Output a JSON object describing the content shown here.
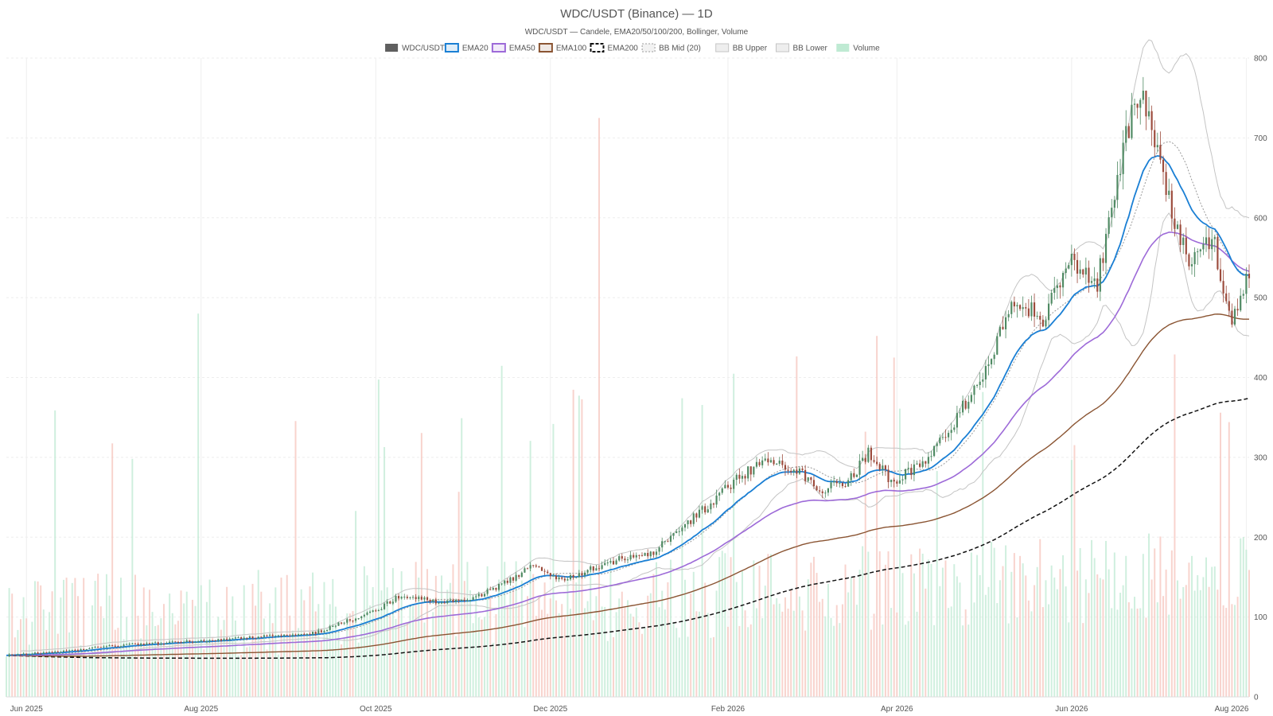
{
  "chart_data": {
    "type": "candlestick",
    "title": "WDC/USDT (Binance) — 1D",
    "subtitle": "WDC/USDT — Candele, EMA20/50/100/200, Bollinger, Volume",
    "legend_placement": "top-center",
    "grid": true,
    "legend": [
      {
        "label": "WDC/USDT",
        "style": "candle",
        "color": "#5f5f5f"
      },
      {
        "label": "EMA20",
        "style": "line",
        "color": "#1a7fd4"
      },
      {
        "label": "EMA50",
        "style": "line",
        "color": "#9d6ad8"
      },
      {
        "label": "EMA100",
        "style": "line",
        "color": "#8a5432"
      },
      {
        "label": "EMA200",
        "style": "dashed",
        "color": "#111111"
      },
      {
        "label": "BB Mid (20)",
        "style": "dotted",
        "color": "#999999"
      },
      {
        "label": "BB Upper",
        "style": "line",
        "color": "#c4c4c4"
      },
      {
        "label": "BB Lower",
        "style": "line",
        "color": "#c4c4c4"
      },
      {
        "label": "Volume",
        "style": "bar",
        "color": "#bfead3"
      }
    ],
    "x_axis": {
      "start": "2025-05-25",
      "end": "2026-08-02",
      "ticks": [
        {
          "label": "Jun 2025",
          "date": "2025-06-01"
        },
        {
          "label": "Aug 2025",
          "date": "2025-08-01"
        },
        {
          "label": "Oct 2025",
          "date": "2025-10-01"
        },
        {
          "label": "Dec 2025",
          "date": "2025-12-01"
        },
        {
          "label": "Feb 2026",
          "date": "2026-02-01"
        },
        {
          "label": "Apr 2026",
          "date": "2026-04-01"
        },
        {
          "label": "Jun 2026",
          "date": "2026-06-01"
        },
        {
          "label": "Aug 2026",
          "date": "2026-08-01"
        }
      ]
    },
    "y_axis": {
      "position": "right",
      "range": [
        0,
        800
      ],
      "ticks": [
        0,
        100,
        200,
        300,
        400,
        500,
        600,
        700,
        800
      ]
    },
    "price_path": [
      {
        "date": "2025-05-25",
        "close": 52
      },
      {
        "date": "2025-06-15",
        "close": 57
      },
      {
        "date": "2025-07-01",
        "close": 64
      },
      {
        "date": "2025-08-01",
        "close": 70
      },
      {
        "date": "2025-08-20",
        "close": 75
      },
      {
        "date": "2025-09-10",
        "close": 80
      },
      {
        "date": "2025-09-20",
        "close": 94
      },
      {
        "date": "2025-10-01",
        "close": 108
      },
      {
        "date": "2025-10-10",
        "close": 128
      },
      {
        "date": "2025-10-25",
        "close": 118
      },
      {
        "date": "2025-11-05",
        "close": 125
      },
      {
        "date": "2025-11-15",
        "close": 142
      },
      {
        "date": "2025-11-25",
        "close": 165
      },
      {
        "date": "2025-12-05",
        "close": 145
      },
      {
        "date": "2025-12-15",
        "close": 160
      },
      {
        "date": "2025-12-25",
        "close": 172
      },
      {
        "date": "2026-01-05",
        "close": 178
      },
      {
        "date": "2026-01-15",
        "close": 210
      },
      {
        "date": "2026-01-25",
        "close": 240
      },
      {
        "date": "2026-02-05",
        "close": 275
      },
      {
        "date": "2026-02-15",
        "close": 300
      },
      {
        "date": "2026-02-25",
        "close": 285
      },
      {
        "date": "2026-03-05",
        "close": 260
      },
      {
        "date": "2026-03-15",
        "close": 270
      },
      {
        "date": "2026-03-22",
        "close": 305
      },
      {
        "date": "2026-03-30",
        "close": 270
      },
      {
        "date": "2026-04-10",
        "close": 290
      },
      {
        "date": "2026-04-20",
        "close": 340
      },
      {
        "date": "2026-05-01",
        "close": 400
      },
      {
        "date": "2026-05-12",
        "close": 500
      },
      {
        "date": "2026-05-22",
        "close": 470
      },
      {
        "date": "2026-06-01",
        "close": 550
      },
      {
        "date": "2026-06-10",
        "close": 520
      },
      {
        "date": "2026-06-20",
        "close": 700
      },
      {
        "date": "2026-06-25",
        "close": 760
      },
      {
        "date": "2026-07-05",
        "close": 620
      },
      {
        "date": "2026-07-12",
        "close": 540
      },
      {
        "date": "2026-07-20",
        "close": 580
      },
      {
        "date": "2026-07-27",
        "close": 470
      },
      {
        "date": "2026-08-02",
        "close": 530
      }
    ],
    "ema_endpoints": {
      "EMA20": [
        52,
        528
      ],
      "EMA50": [
        52,
        533
      ],
      "EMA100": [
        52,
        473
      ],
      "EMA200": [
        52,
        374
      ]
    },
    "bb_endpoints": {
      "upper": [
        54,
        600
      ],
      "lower": [
        52,
        452
      ]
    },
    "volume_note": "Volume bars share the 0–800 right axis scale; peaks reach ~725"
  }
}
